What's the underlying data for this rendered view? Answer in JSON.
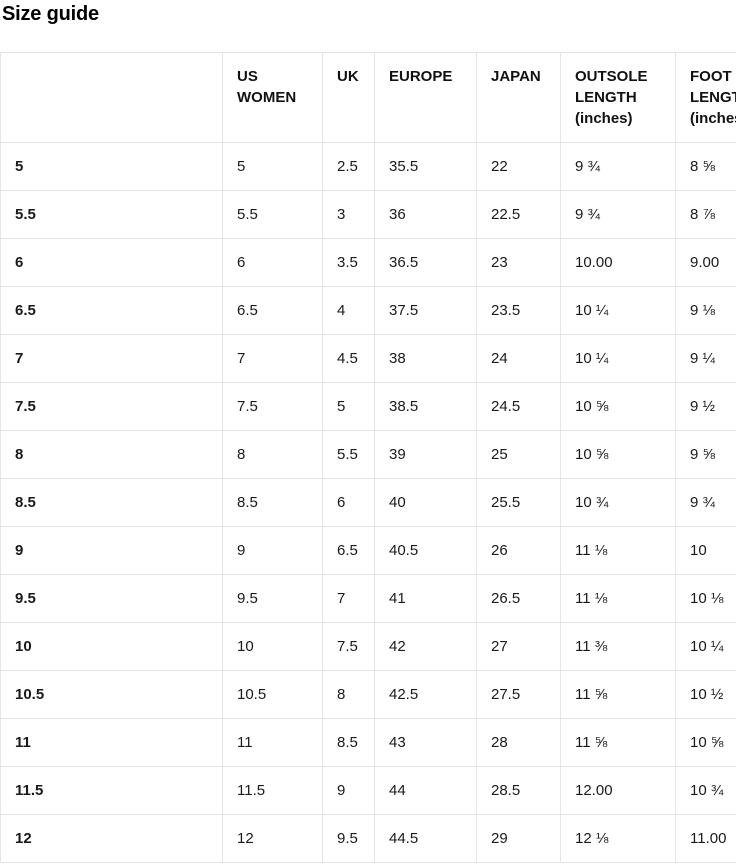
{
  "page": {
    "title": "Size guide"
  },
  "colors": {
    "background": "#ffffff",
    "text": "#1a1a1a",
    "heading": "#000000",
    "table_border": "#e4e4e4"
  },
  "table": {
    "columns": [
      "",
      "US WOMEN",
      "UK",
      "EUROPE",
      "JAPAN",
      "OUTSOLE LENGTH (inches)",
      "FOOT LENGTH (inches)"
    ],
    "rows": [
      [
        "5",
        "5",
        "2.5",
        "35.5",
        "22",
        "9 ¾",
        "8 ⅝"
      ],
      [
        "5.5",
        "5.5",
        "3",
        "36",
        "22.5",
        "9 ¾",
        "8 ⅞"
      ],
      [
        "6",
        "6",
        "3.5",
        "36.5",
        "23",
        "10.00",
        "9.00"
      ],
      [
        "6.5",
        "6.5",
        "4",
        "37.5",
        "23.5",
        "10 ¼",
        "9 ⅛"
      ],
      [
        "7",
        "7",
        "4.5",
        "38",
        "24",
        "10 ¼",
        "9 ¼"
      ],
      [
        "7.5",
        "7.5",
        "5",
        "38.5",
        "24.5",
        "10 ⅝",
        "9 ½"
      ],
      [
        "8",
        "8",
        "5.5",
        "39",
        "25",
        "10 ⅝",
        "9 ⅝"
      ],
      [
        "8.5",
        "8.5",
        "6",
        "40",
        "25.5",
        "10 ¾",
        "9 ¾"
      ],
      [
        "9",
        "9",
        "6.5",
        "40.5",
        "26",
        "11 ⅛",
        "10"
      ],
      [
        "9.5",
        "9.5",
        "7",
        "41",
        "26.5",
        "11 ⅛",
        "10 ⅛"
      ],
      [
        "10",
        "10",
        "7.5",
        "42",
        "27",
        "11 ⅜",
        "10 ¼"
      ],
      [
        "10.5",
        "10.5",
        "8",
        "42.5",
        "27.5",
        "11 ⅝",
        "10 ½"
      ],
      [
        "11",
        "11",
        "8.5",
        "43",
        "28",
        "11 ⅝",
        "10 ⅝"
      ],
      [
        "11.5",
        "11.5",
        "9",
        "44",
        "28.5",
        "12.00",
        "10 ¾"
      ],
      [
        "12",
        "12",
        "9.5",
        "44.5",
        "29",
        "12 ⅛",
        "11.00"
      ]
    ]
  }
}
